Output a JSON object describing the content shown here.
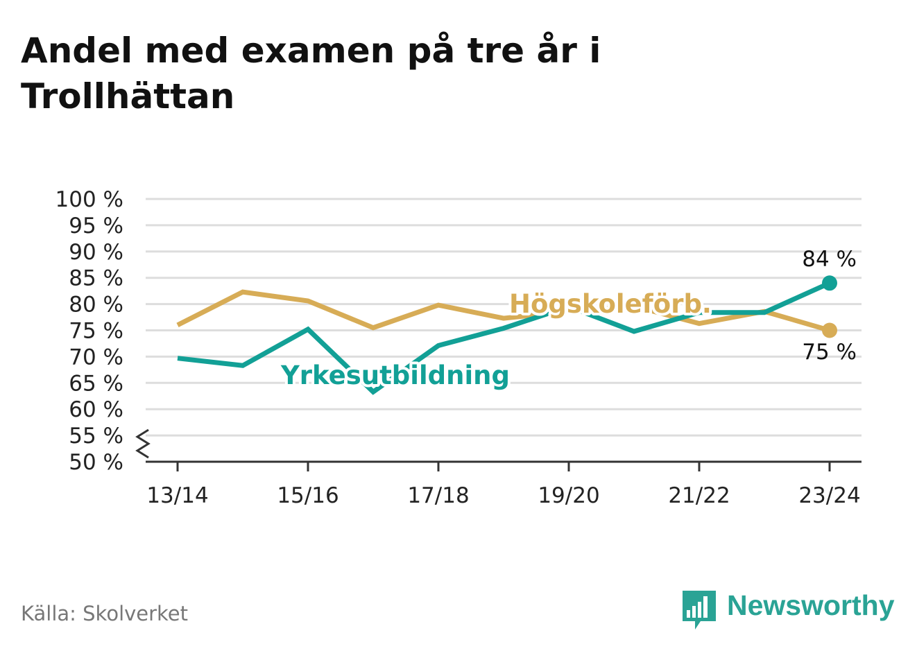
{
  "title": "Andel med examen på tre år i Trollhättan",
  "source": "Källa: Skolverket",
  "brand": "Newsworthy",
  "colors": {
    "series1": "#d7ac56",
    "series2": "#12a096",
    "grid": "#dddddd",
    "axis": "#333333",
    "brand": "#2aa395"
  },
  "chart_data": {
    "type": "line",
    "title": "Andel med examen på tre år i Trollhättan",
    "xlabel": "",
    "ylabel": "",
    "x": [
      "13/14",
      "14/15",
      "15/16",
      "16/17",
      "17/18",
      "18/19",
      "19/20",
      "20/21",
      "21/22",
      "22/23",
      "23/24"
    ],
    "x_tick_labels": [
      "13/14",
      "15/16",
      "17/18",
      "19/20",
      "21/22",
      "23/24"
    ],
    "y_tick_labels": [
      "50 %",
      "55 %",
      "60 %",
      "65 %",
      "70 %",
      "75 %",
      "80 %",
      "85 %",
      "90 %",
      "95 %",
      "100 %"
    ],
    "ylim": [
      50,
      100
    ],
    "y_axis_break": true,
    "grid": true,
    "series": [
      {
        "name": "Högskoleförb.",
        "values": [
          76,
          82.3,
          80.6,
          75.5,
          79.8,
          77.3,
          78.6,
          79.6,
          76.3,
          78.6,
          75
        ],
        "end_label": "75 %"
      },
      {
        "name": "Yrkesutbildning",
        "values": [
          69.7,
          68.3,
          75.2,
          63.3,
          72.1,
          75.4,
          79.5,
          74.8,
          78.4,
          78.4,
          84
        ],
        "end_label": "84 %"
      }
    ]
  }
}
